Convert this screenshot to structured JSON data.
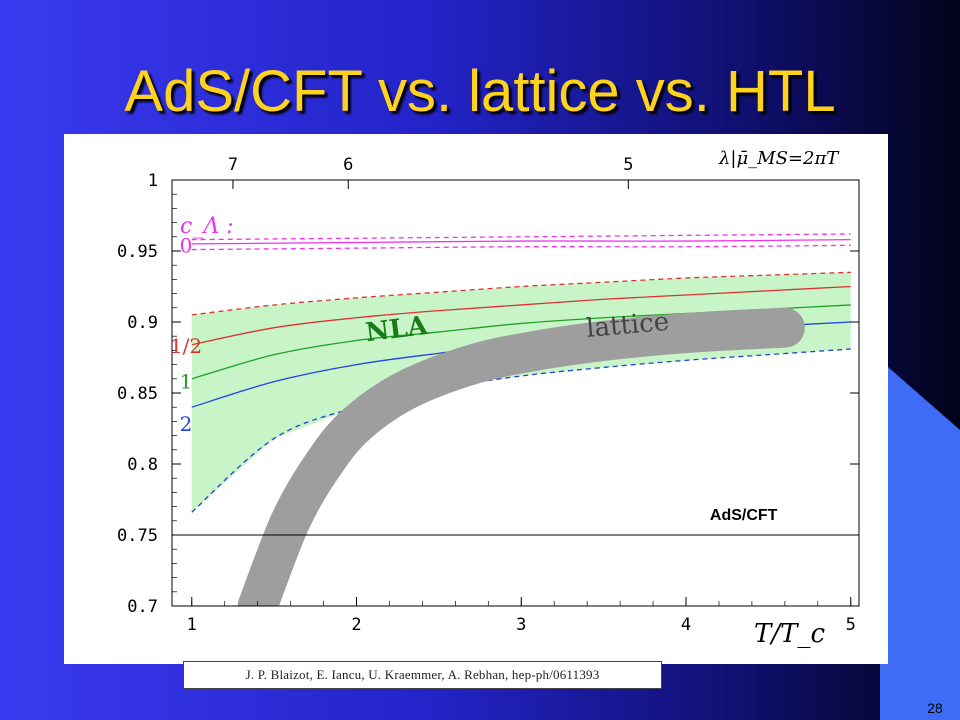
{
  "slide": {
    "title": "AdS/CFT vs. lattice vs. HTL",
    "citation": "J. P. Blaizot, E. Iancu, U. Kraemmer, A. Rebhan, hep-ph/0611393",
    "slide_number": "28"
  },
  "colors": {
    "background": "#2a2ad8",
    "accent_panel": "#3f6cf5",
    "title": "#ffd21c",
    "band_fill": "#c8f5c8",
    "lattice_band": "#9e9e9e",
    "magenta": "#ee33ee",
    "red": "#e03030",
    "green": "#22a022",
    "blue": "#2040e8"
  },
  "chart_data": {
    "type": "line",
    "xlabel": "T/T_c",
    "top_axis_label": "λ|μ̄_MS=2πT",
    "top_ticks": [
      {
        "x": 1.25,
        "label": "7"
      },
      {
        "x": 1.95,
        "label": "6"
      },
      {
        "x": 3.65,
        "label": "5"
      }
    ],
    "xlim": [
      0.88,
      5.05
    ],
    "ylim": [
      0.7,
      1.0
    ],
    "xticks": [
      1,
      2,
      3,
      4,
      5
    ],
    "yticks": [
      0.7,
      0.75,
      0.8,
      0.85,
      0.9,
      0.95,
      1
    ],
    "ytick_labels": [
      "0.7",
      "0.75",
      "0.8",
      "0.85",
      "0.9",
      "0.95",
      "1"
    ],
    "xtick_labels": [
      "1",
      "2",
      "3",
      "4",
      "5"
    ],
    "legend_title": "c_Λ :",
    "series_labels": [
      {
        "text": "0",
        "color": "#ee33ee",
        "y": 0.954
      },
      {
        "text": "1/2",
        "color": "#e03030",
        "y": 0.883
      },
      {
        "text": "1",
        "color": "#22a022",
        "y": 0.858
      },
      {
        "text": "2",
        "color": "#2040e8",
        "y": 0.828
      }
    ],
    "annotations": [
      {
        "text": "NLA",
        "x": 2.25,
        "y": 0.889
      },
      {
        "text": "lattice",
        "x": 3.65,
        "y": 0.892
      },
      {
        "text": "AdS/CFT",
        "x": 4.35,
        "y": 0.769
      }
    ],
    "hline": {
      "y": 0.75,
      "label": "AdS/CFT"
    },
    "band": {
      "x": [
        1,
        1.5,
        2,
        2.5,
        3,
        3.5,
        4,
        4.5,
        5
      ],
      "upper": [
        0.905,
        0.912,
        0.917,
        0.921,
        0.925,
        0.928,
        0.931,
        0.933,
        0.935
      ],
      "lower": [
        0.766,
        0.818,
        0.84,
        0.853,
        0.862,
        0.868,
        0.873,
        0.877,
        0.881
      ]
    },
    "series": [
      {
        "name": "0",
        "style": "solid",
        "color": "#ee33ee",
        "x": [
          1,
          2,
          3,
          4,
          5
        ],
        "y": [
          0.955,
          0.956,
          0.957,
          0.957,
          0.958
        ]
      },
      {
        "name": "0",
        "style": "dashed",
        "color": "#ee33ee",
        "x": [
          1,
          2,
          3,
          4,
          5
        ],
        "y": [
          0.958,
          0.959,
          0.96,
          0.961,
          0.962
        ]
      },
      {
        "name": "0",
        "style": "dashed",
        "color": "#ee33ee",
        "x": [
          1,
          2,
          3,
          4,
          5
        ],
        "y": [
          0.951,
          0.952,
          0.953,
          0.953,
          0.954
        ]
      },
      {
        "name": "1/2",
        "style": "solid",
        "color": "#e03030",
        "x": [
          1,
          1.5,
          2,
          2.5,
          3,
          3.5,
          4,
          4.5,
          5
        ],
        "y": [
          0.884,
          0.896,
          0.903,
          0.908,
          0.912,
          0.916,
          0.919,
          0.922,
          0.925
        ]
      },
      {
        "name": "1",
        "style": "solid",
        "color": "#22a022",
        "x": [
          1,
          1.5,
          2,
          2.5,
          3,
          3.5,
          4,
          4.5,
          5
        ],
        "y": [
          0.86,
          0.877,
          0.887,
          0.893,
          0.899,
          0.903,
          0.906,
          0.909,
          0.912
        ]
      },
      {
        "name": "2",
        "style": "solid",
        "color": "#2040e8",
        "x": [
          1,
          1.5,
          2,
          2.5,
          3,
          3.5,
          4,
          4.5,
          5
        ],
        "y": [
          0.84,
          0.858,
          0.87,
          0.878,
          0.885,
          0.89,
          0.894,
          0.897,
          0.9
        ]
      },
      {
        "name": "upper",
        "style": "dashed",
        "color": "#e03030",
        "x": [
          1,
          1.5,
          2,
          2.5,
          3,
          3.5,
          4,
          4.5,
          5
        ],
        "y": [
          0.905,
          0.912,
          0.917,
          0.921,
          0.925,
          0.928,
          0.931,
          0.933,
          0.935
        ]
      },
      {
        "name": "lower",
        "style": "dashed",
        "color": "#2040e8",
        "x": [
          1,
          1.5,
          2,
          2.5,
          3,
          3.5,
          4,
          4.5,
          5
        ],
        "y": [
          0.766,
          0.818,
          0.84,
          0.853,
          0.862,
          0.868,
          0.873,
          0.877,
          0.881
        ]
      }
    ],
    "lattice_band": {
      "x": [
        1.4,
        1.6,
        1.8,
        2.0,
        2.3,
        2.7,
        3.1,
        3.6,
        4.1,
        4.6
      ],
      "y": [
        0.7,
        0.76,
        0.8,
        0.828,
        0.852,
        0.87,
        0.88,
        0.888,
        0.893,
        0.896
      ]
    },
    "grid": false
  }
}
